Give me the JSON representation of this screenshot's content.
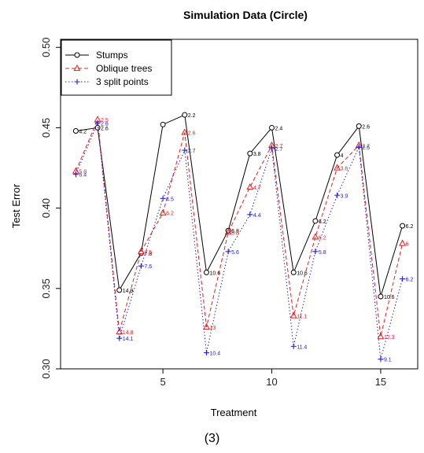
{
  "caption": "(3)",
  "chart_data": {
    "type": "line",
    "title": "Simulation Data (Circle)",
    "xlabel": "Treatment",
    "ylabel": "Test Error",
    "xlim": [
      0.3,
      16.7
    ],
    "ylim": [
      0.3,
      0.505
    ],
    "xticks": [
      5,
      10,
      15
    ],
    "yticks": [
      0.3,
      0.35,
      0.4,
      0.45,
      0.5
    ],
    "ytick_labels": [
      "0.30",
      "0.35",
      "0.40",
      "0.45",
      "0.50"
    ],
    "grid": false,
    "legend_position": "top-left",
    "x": [
      1,
      2,
      3,
      4,
      5,
      6,
      7,
      8,
      9,
      10,
      11,
      12,
      13,
      14,
      15,
      16
    ],
    "series": [
      {
        "name": "Stumps",
        "color": "#000000",
        "line": "solid",
        "marker": "circle",
        "values": [
          0.448,
          0.45,
          0.349,
          0.372,
          0.452,
          0.458,
          0.36,
          0.386,
          0.434,
          0.45,
          0.36,
          0.392,
          0.433,
          0.451,
          0.345,
          0.389
        ],
        "labels": [
          "4.2",
          "2.6",
          "14.9",
          "7.8",
          "",
          "2.2",
          "10.6",
          "6.8",
          "3.8",
          "2.4",
          "10.6",
          "6.2",
          "4",
          "2.6",
          "10.6",
          "6.2"
        ]
      },
      {
        "name": "Oblique trees",
        "color": "#e02020",
        "line": "dashed",
        "marker": "triangle",
        "values": [
          0.423,
          0.455,
          0.323,
          0.373,
          0.397,
          0.447,
          0.326,
          0.385,
          0.413,
          0.439,
          0.333,
          0.382,
          0.425,
          0.439,
          0.32,
          0.378
        ],
        "labels": [
          "5.8",
          "2.5",
          "14.8",
          "7.5",
          "6.2",
          "2.6",
          "13",
          "6.8",
          "4.7",
          "2.7",
          "11.1",
          "6.2",
          "3.6",
          "2.7",
          "12.3",
          "6"
        ]
      },
      {
        "name": "3 split points",
        "color": "#2020e0",
        "line": "dotted",
        "marker": "plus",
        "values": [
          0.421,
          0.453,
          0.319,
          0.364,
          0.406,
          0.436,
          0.31,
          0.373,
          0.396,
          0.437,
          0.314,
          0.373,
          0.408,
          0.438,
          0.306,
          0.356
        ],
        "labels": [
          "6.4",
          "2.6",
          "14.1",
          "7.6",
          "4.5",
          "2.7",
          "10.4",
          "5.6",
          "4.4",
          "2.7",
          "11.4",
          "5.8",
          "3.9",
          "2.5",
          "9.1",
          "6.2"
        ]
      }
    ]
  }
}
